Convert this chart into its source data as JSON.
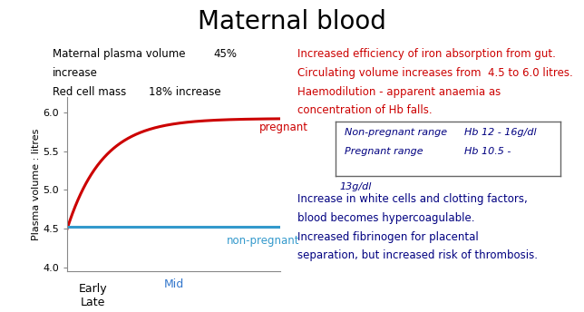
{
  "title": "Maternal blood",
  "title_fontsize": 20,
  "title_color": "#000000",
  "background_color": "#ffffff",
  "left_text_line1": "Maternal plasma volume",
  "left_text_line1_val": "45%",
  "left_text_line2": "increase",
  "left_text_line3": "Red cell mass",
  "left_text_line3_val": "18% increase",
  "left_text_color": "#000000",
  "right_text_line1": "Increased efficiency of iron absorption from gut.",
  "right_text_line2": "Circulating volume increases from  4.5 to 6.0 litres.",
  "right_text_line3": "Haemodilution - apparent anaemia as",
  "right_text_line4": "concentration of Hb falls.",
  "right_text_color": "#cc0000",
  "box_line1a": "Non-pregnant range",
  "box_line1b": "Hb 12 - 16g/dl",
  "box_line2a": "Pregnant range",
  "box_line2b": "Hb 10.5 -",
  "box_line3": "13g/dl",
  "box_text_color": "#000080",
  "bottom_right_line1": "Increase in white cells and clotting factors,",
  "bottom_right_line2": "blood becomes hypercoagulable.",
  "bottom_right_line3": "Increased fibrinogen for placental",
  "bottom_right_line4": "separation, but increased risk of thrombosis.",
  "bottom_right_color": "#000080",
  "ylabel": "Plasma volume : litres",
  "ylabel_fontsize": 8,
  "ylim": [
    3.95,
    6.2
  ],
  "yticks": [
    4.0,
    4.5,
    5.0,
    5.5,
    6.0
  ],
  "xlabel_early": "Early\nLate",
  "xlabel_mid": "Mid",
  "xlabel_color_early": "#000000",
  "xlabel_color_mid": "#3377cc",
  "pregnant_color": "#cc0000",
  "nonpregnant_color": "#3399cc",
  "pregnant_label": "pregnant",
  "nonpregnant_label": "non-pregnant",
  "pregnant_label_color": "#cc0000",
  "nonpregnant_label_color": "#3399cc",
  "axis_tick_fontsize": 8,
  "text_fontsize": 8.5
}
